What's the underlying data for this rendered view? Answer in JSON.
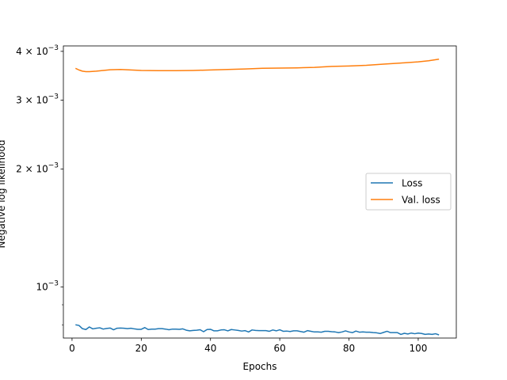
{
  "chart_data": {
    "type": "line",
    "title": "",
    "xlabel": "Epochs",
    "ylabel": "Negative log likelihood",
    "yscale": "log",
    "xlim": [
      -2.5,
      111
    ],
    "ylim": [
      0.00074,
      0.00413
    ],
    "grid": false,
    "legend_position": "center-right",
    "x_ticks": [
      {
        "value": 0,
        "label": "0"
      },
      {
        "value": 20,
        "label": "20"
      },
      {
        "value": 40,
        "label": "40"
      },
      {
        "value": 60,
        "label": "60"
      },
      {
        "value": 80,
        "label": "80"
      },
      {
        "value": 100,
        "label": "100"
      }
    ],
    "y_major_ticks": [
      {
        "value": 0.001,
        "mantissa": "",
        "exp": "−3"
      },
      {
        "value": 0.002,
        "mantissa": "2 × ",
        "exp": "−3"
      },
      {
        "value": 0.003,
        "mantissa": "3 × ",
        "exp": "−3"
      },
      {
        "value": 0.004,
        "mantissa": "4 × ",
        "exp": "−3"
      }
    ],
    "y_minor_ticks": [
      0.0008,
      0.0009,
      0.005,
      0.006,
      0.007,
      0.008,
      0.009
    ],
    "series": [
      {
        "name": "Loss",
        "color": "#1f77b4",
        "values": [
          [
            1,
            0.0008
          ],
          [
            2,
            0.000797
          ],
          [
            3,
            0.000782
          ],
          [
            4,
            0.000778
          ],
          [
            5,
            0.00079
          ],
          [
            6,
            0.000781
          ],
          [
            7,
            0.000784
          ],
          [
            8,
            0.000786
          ],
          [
            9,
            0.00078
          ],
          [
            10,
            0.000783
          ],
          [
            11,
            0.000785
          ],
          [
            12,
            0.000777
          ],
          [
            13,
            0.000784
          ],
          [
            14,
            0.000785
          ],
          [
            15,
            0.000784
          ],
          [
            16,
            0.000782
          ],
          [
            17,
            0.000784
          ],
          [
            18,
            0.000781
          ],
          [
            19,
            0.000779
          ],
          [
            20,
            0.000779
          ],
          [
            21,
            0.000787
          ],
          [
            22,
            0.000778
          ],
          [
            23,
            0.00078
          ],
          [
            24,
            0.00078
          ],
          [
            25,
            0.000782
          ],
          [
            26,
            0.000782
          ],
          [
            27,
            0.00078
          ],
          [
            28,
            0.000777
          ],
          [
            29,
            0.00078
          ],
          [
            30,
            0.00078
          ],
          [
            31,
            0.000779
          ],
          [
            32,
            0.000781
          ],
          [
            33,
            0.000775
          ],
          [
            34,
            0.000772
          ],
          [
            35,
            0.000774
          ],
          [
            36,
            0.000775
          ],
          [
            37,
            0.000777
          ],
          [
            38,
            0.000768
          ],
          [
            39,
            0.000778
          ],
          [
            40,
            0.000779
          ],
          [
            41,
            0.000772
          ],
          [
            42,
            0.000772
          ],
          [
            43,
            0.000776
          ],
          [
            44,
            0.000777
          ],
          [
            45,
            0.000772
          ],
          [
            46,
            0.000778
          ],
          [
            47,
            0.000776
          ],
          [
            48,
            0.000774
          ],
          [
            49,
            0.000771
          ],
          [
            50,
            0.000773
          ],
          [
            51,
            0.000767
          ],
          [
            52,
            0.000776
          ],
          [
            53,
            0.000774
          ],
          [
            54,
            0.000773
          ],
          [
            55,
            0.000773
          ],
          [
            56,
            0.000773
          ],
          [
            57,
            0.00077
          ],
          [
            58,
            0.000776
          ],
          [
            59,
            0.000772
          ],
          [
            60,
            0.000777
          ],
          [
            61,
            0.00077
          ],
          [
            62,
            0.000771
          ],
          [
            63,
            0.000769
          ],
          [
            64,
            0.000772
          ],
          [
            65,
            0.000772
          ],
          [
            66,
            0.000769
          ],
          [
            67,
            0.000766
          ],
          [
            68,
            0.000773
          ],
          [
            69,
            0.00077
          ],
          [
            70,
            0.000767
          ],
          [
            71,
            0.000767
          ],
          [
            72,
            0.000766
          ],
          [
            73,
            0.00077
          ],
          [
            74,
            0.00077
          ],
          [
            75,
            0.000768
          ],
          [
            76,
            0.000767
          ],
          [
            77,
            0.000764
          ],
          [
            78,
            0.000767
          ],
          [
            79,
            0.000772
          ],
          [
            80,
            0.000767
          ],
          [
            81,
            0.000764
          ],
          [
            82,
            0.000771
          ],
          [
            83,
            0.000766
          ],
          [
            84,
            0.000767
          ],
          [
            85,
            0.000766
          ],
          [
            86,
            0.000766
          ],
          [
            87,
            0.000764
          ],
          [
            88,
            0.000763
          ],
          [
            89,
            0.00076
          ],
          [
            90,
            0.000765
          ],
          [
            91,
            0.00077
          ],
          [
            92,
            0.000764
          ],
          [
            93,
            0.000764
          ],
          [
            94,
            0.000764
          ],
          [
            95,
            0.000756
          ],
          [
            96,
            0.000761
          ],
          [
            97,
            0.000758
          ],
          [
            98,
            0.000762
          ],
          [
            99,
            0.000759
          ],
          [
            100,
            0.000762
          ],
          [
            101,
            0.00076
          ],
          [
            102,
            0.000756
          ],
          [
            103,
            0.000758
          ],
          [
            104,
            0.000756
          ],
          [
            105,
            0.000759
          ],
          [
            106,
            0.000754
          ]
        ]
      },
      {
        "name": "Val. loss",
        "color": "#ff7f0e",
        "values": [
          [
            1,
            0.00362
          ],
          [
            2,
            0.003585
          ],
          [
            3,
            0.00356
          ],
          [
            4,
            0.00355
          ],
          [
            5,
            0.00355
          ],
          [
            7,
            0.00356
          ],
          [
            9,
            0.003575
          ],
          [
            11,
            0.00359
          ],
          [
            14,
            0.003595
          ],
          [
            17,
            0.003585
          ],
          [
            20,
            0.003575
          ],
          [
            25,
            0.00357
          ],
          [
            30,
            0.00357
          ],
          [
            35,
            0.003575
          ],
          [
            40,
            0.003585
          ],
          [
            45,
            0.003595
          ],
          [
            50,
            0.003605
          ],
          [
            55,
            0.00362
          ],
          [
            60,
            0.003625
          ],
          [
            65,
            0.00363
          ],
          [
            70,
            0.00364
          ],
          [
            75,
            0.00366
          ],
          [
            80,
            0.00367
          ],
          [
            85,
            0.003685
          ],
          [
            90,
            0.00371
          ],
          [
            95,
            0.003735
          ],
          [
            100,
            0.00376
          ],
          [
            103,
            0.003785
          ],
          [
            106,
            0.00382
          ]
        ]
      }
    ]
  }
}
